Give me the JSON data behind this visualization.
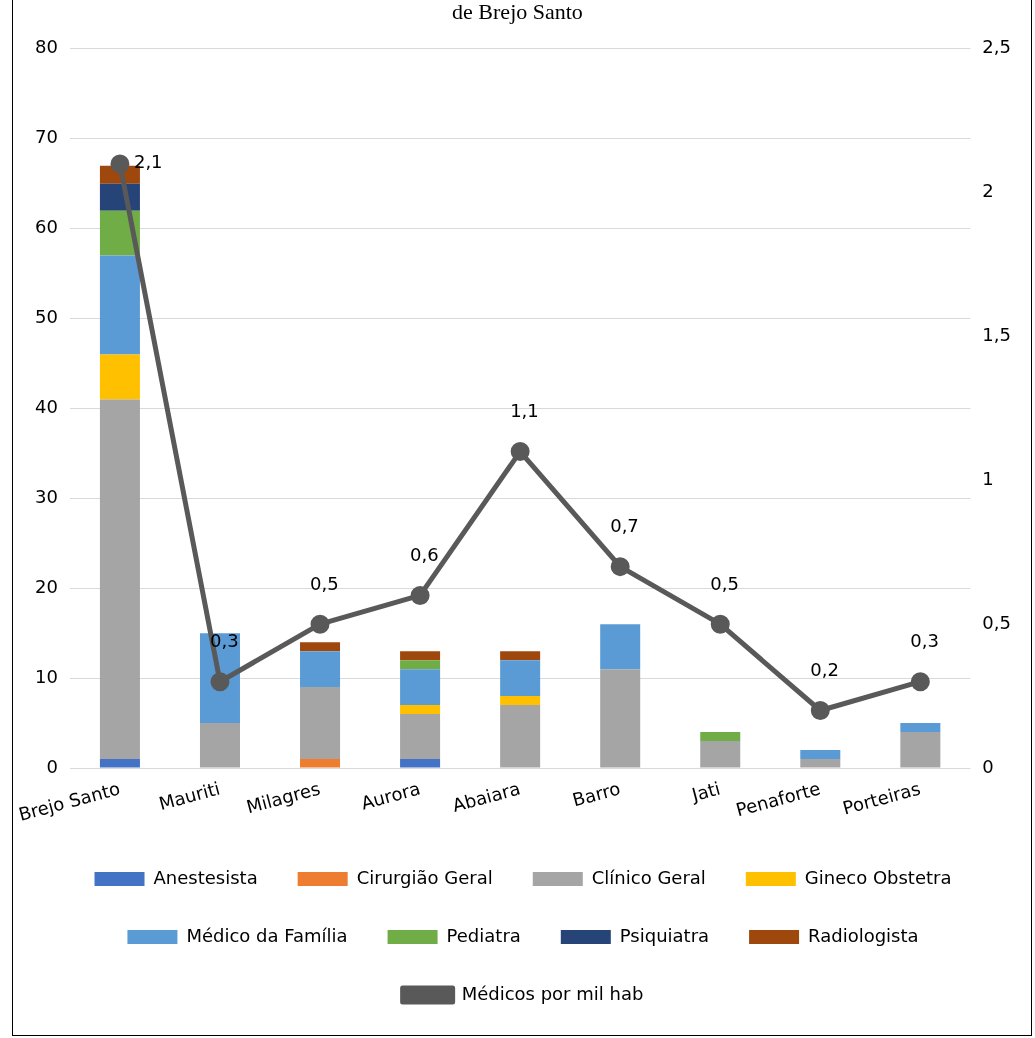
{
  "chart_data": {
    "type": "bar",
    "title": "de Brejo Santo",
    "stacked": true,
    "categories": [
      "Brejo Santo",
      "Mauriti",
      "Milagres",
      "Aurora",
      "Abaiara",
      "Barro",
      "Jati",
      "Penaforte",
      "Porteiras"
    ],
    "series": [
      {
        "name": "Anestesista",
        "color": "#4472c4",
        "values": [
          1,
          0,
          0,
          1,
          0,
          0,
          0,
          0,
          0
        ]
      },
      {
        "name": "Cirurgião Geral",
        "color": "#ed7d31",
        "values": [
          0,
          0,
          1,
          0,
          0,
          0,
          0,
          0,
          0
        ]
      },
      {
        "name": "Clínico Geral",
        "color": "#a5a5a5",
        "values": [
          40,
          5,
          8,
          5,
          7,
          11,
          3,
          1,
          4
        ]
      },
      {
        "name": "Gineco Obstetra",
        "color": "#ffc000",
        "values": [
          5,
          0,
          0,
          1,
          1,
          0,
          0,
          0,
          0
        ]
      },
      {
        "name": "Médico da Família",
        "color": "#5b9bd5",
        "values": [
          11,
          10,
          4,
          4,
          4,
          5,
          0,
          1,
          1
        ]
      },
      {
        "name": "Pediatra",
        "color": "#70ad47",
        "values": [
          5,
          0,
          0,
          1,
          0,
          0,
          1,
          0,
          0
        ]
      },
      {
        "name": "Psiquiatra",
        "color": "#264478",
        "values": [
          3,
          0,
          0,
          0,
          0,
          0,
          0,
          0,
          0
        ]
      },
      {
        "name": "Radiologista",
        "color": "#9e480e",
        "values": [
          2,
          0,
          1,
          1,
          1,
          0,
          0,
          0,
          0
        ]
      },
      {
        "name": "Médicos por mil hab",
        "type": "line",
        "axis": "y2",
        "color": "#595959",
        "marker": "circle",
        "values": [
          2.1,
          0.3,
          0.5,
          0.6,
          1.1,
          0.7,
          0.5,
          0.2,
          0.3
        ],
        "value_labels": [
          "2,1",
          "0,3",
          "0,5",
          "0,6",
          "1,1",
          "0,7",
          "0,5",
          "0,2",
          "0,3"
        ]
      }
    ],
    "ylim": [
      0,
      80
    ],
    "yticks": [
      0,
      10,
      20,
      30,
      40,
      50,
      60,
      70,
      80
    ],
    "y2lim": [
      0,
      2.5
    ],
    "y2ticks": [
      0,
      {
        "value": 0.5,
        "label": "0,5"
      },
      1,
      {
        "value": 1.5,
        "label": "1,5"
      },
      2,
      {
        "value": 2.5,
        "label": "2,5"
      }
    ],
    "grid": "y",
    "legend": "bottom"
  }
}
